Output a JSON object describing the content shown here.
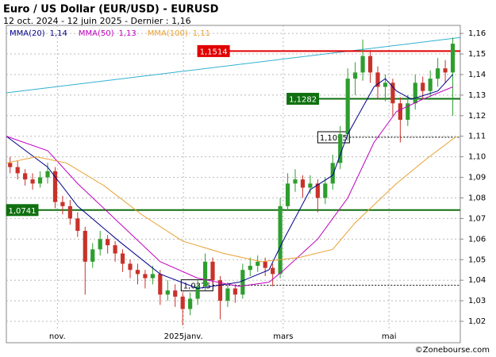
{
  "chart_data": {
    "type": "candlestick",
    "title": "Euro / US Dollar (EUR/USD) - EURUSD",
    "subtitle": "12 oct. 2024 - 12 juin 2025 - Dernier : 1,16",
    "source": "©Zonebourse.com",
    "up_color": "#2e9e2e",
    "down_color": "#c8322a",
    "grid": true,
    "xlim": [
      -0.5,
      60
    ],
    "ylim": [
      1.0096,
      1.1639
    ],
    "xticks": [
      {
        "value": 6.3,
        "label": "nov."
      },
      {
        "value": 23.1,
        "label": "2025janv."
      },
      {
        "value": 36.4,
        "label": "mars"
      },
      {
        "value": 50.5,
        "label": "mai"
      }
    ],
    "yticks": [
      {
        "value": 1.02,
        "label": "1,02"
      },
      {
        "value": 1.03,
        "label": "1,03"
      },
      {
        "value": 1.04,
        "label": "1,04"
      },
      {
        "value": 1.05,
        "label": "1,05"
      },
      {
        "value": 1.06,
        "label": "1,06"
      },
      {
        "value": 1.07,
        "label": "1,07"
      },
      {
        "value": 1.08,
        "label": "1,08"
      },
      {
        "value": 1.09,
        "label": "1,09"
      },
      {
        "value": 1.1,
        "label": "1,10"
      },
      {
        "value": 1.11,
        "label": "1,11"
      },
      {
        "value": 1.12,
        "label": "1,12"
      },
      {
        "value": 1.13,
        "label": "1,13"
      },
      {
        "value": 1.14,
        "label": "1,14"
      },
      {
        "value": 1.15,
        "label": "1,15"
      },
      {
        "value": 1.16,
        "label": "1,16"
      }
    ],
    "candles": [
      [
        1.097,
        1.1,
        1.092,
        1.095
      ],
      [
        1.095,
        1.098,
        1.089,
        1.092
      ],
      [
        1.092,
        1.094,
        1.086,
        1.089
      ],
      [
        1.089,
        1.092,
        1.084,
        1.087
      ],
      [
        1.087,
        1.093,
        1.085,
        1.09
      ],
      [
        1.09,
        1.097,
        1.087,
        1.093
      ],
      [
        1.093,
        1.095,
        1.075,
        1.078
      ],
      [
        1.078,
        1.081,
        1.072,
        1.076
      ],
      [
        1.076,
        1.079,
        1.067,
        1.07
      ],
      [
        1.07,
        1.073,
        1.061,
        1.064
      ],
      [
        1.064,
        1.066,
        1.033,
        1.049
      ],
      [
        1.049,
        1.058,
        1.046,
        1.055
      ],
      [
        1.055,
        1.064,
        1.052,
        1.06
      ],
      [
        1.06,
        1.062,
        1.053,
        1.057
      ],
      [
        1.057,
        1.059,
        1.049,
        1.053
      ],
      [
        1.053,
        1.055,
        1.044,
        1.048
      ],
      [
        1.048,
        1.05,
        1.041,
        1.045
      ],
      [
        1.045,
        1.048,
        1.038,
        1.043
      ],
      [
        1.043,
        1.045,
        1.036,
        1.041
      ],
      [
        1.041,
        1.047,
        1.038,
        1.043
      ],
      [
        1.043,
        1.045,
        1.028,
        1.033
      ],
      [
        1.033,
        1.04,
        1.03,
        1.035
      ],
      [
        1.035,
        1.038,
        1.027,
        1.032
      ],
      [
        1.032,
        1.034,
        1.018,
        1.026
      ],
      [
        1.026,
        1.034,
        1.023,
        1.031
      ],
      [
        1.031,
        1.04,
        1.028,
        1.037
      ],
      [
        1.037,
        1.053,
        1.035,
        1.049
      ],
      [
        1.049,
        1.051,
        1.038,
        1.04
      ],
      [
        1.04,
        1.042,
        1.021,
        1.03
      ],
      [
        1.03,
        1.039,
        1.027,
        1.036
      ],
      [
        1.036,
        1.038,
        1.029,
        1.033
      ],
      [
        1.033,
        1.048,
        1.031,
        1.045
      ],
      [
        1.045,
        1.051,
        1.042,
        1.047
      ],
      [
        1.047,
        1.052,
        1.044,
        1.049
      ],
      [
        1.049,
        1.051,
        1.042,
        1.046
      ],
      [
        1.046,
        1.048,
        1.037,
        1.043
      ],
      [
        1.043,
        1.08,
        1.041,
        1.076
      ],
      [
        1.076,
        1.092,
        1.074,
        1.087
      ],
      [
        1.087,
        1.094,
        1.083,
        1.089
      ],
      [
        1.089,
        1.091,
        1.08,
        1.085
      ],
      [
        1.085,
        1.091,
        1.082,
        1.087
      ],
      [
        1.087,
        1.089,
        1.073,
        1.08
      ],
      [
        1.08,
        1.09,
        1.077,
        1.087
      ],
      [
        1.087,
        1.101,
        1.084,
        1.097
      ],
      [
        1.097,
        1.115,
        1.094,
        1.111
      ],
      [
        1.111,
        1.143,
        1.108,
        1.138
      ],
      [
        1.138,
        1.146,
        1.13,
        1.141
      ],
      [
        1.141,
        1.157,
        1.137,
        1.149
      ],
      [
        1.149,
        1.152,
        1.136,
        1.141
      ],
      [
        1.141,
        1.144,
        1.128,
        1.134
      ],
      [
        1.134,
        1.14,
        1.127,
        1.136
      ],
      [
        1.136,
        1.138,
        1.12,
        1.126
      ],
      [
        1.126,
        1.129,
        1.107,
        1.118
      ],
      [
        1.118,
        1.13,
        1.115,
        1.126
      ],
      [
        1.126,
        1.14,
        1.123,
        1.136
      ],
      [
        1.136,
        1.139,
        1.128,
        1.132
      ],
      [
        1.132,
        1.142,
        1.129,
        1.138
      ],
      [
        1.138,
        1.148,
        1.134,
        1.143
      ],
      [
        1.143,
        1.147,
        1.136,
        1.141
      ],
      [
        1.141,
        1.158,
        1.12,
        1.155
      ]
    ],
    "series": [
      {
        "name": "MMA(20)",
        "last_label": "1,14",
        "last": 1.14,
        "color": "#00008b",
        "x": [
          -0.5,
          5,
          9,
          14.5,
          20,
          25,
          30.5,
          34.5,
          36.5,
          40,
          43,
          45,
          48.5,
          50,
          51.5,
          53.5,
          57,
          59
        ],
        "values": [
          1.11,
          1.095,
          1.076,
          1.059,
          1.043,
          1.036,
          1.039,
          1.045,
          1.06,
          1.084,
          1.091,
          1.111,
          1.134,
          1.138,
          1.132,
          1.128,
          1.132,
          1.14
        ]
      },
      {
        "name": "MMA(50)",
        "last_label": "1,13",
        "last": 1.13,
        "color": "#c000c0",
        "x": [
          -0.5,
          5,
          9,
          14.5,
          20,
          25,
          30.5,
          34.5,
          36.5,
          41,
          45,
          48.5,
          51.5,
          55,
          59
        ],
        "values": [
          1.11,
          1.103,
          1.087,
          1.068,
          1.049,
          1.041,
          1.037,
          1.039,
          1.045,
          1.06,
          1.08,
          1.107,
          1.122,
          1.128,
          1.134
        ]
      },
      {
        "name": "MMA(100)",
        "last_label": "1,11",
        "last": 1.11,
        "color": "#e8a030",
        "x": [
          -0.5,
          3.5,
          7.5,
          12.5,
          17.5,
          23,
          28.5,
          33.5,
          38.5,
          43,
          46,
          51.5,
          55.5,
          59.5
        ],
        "values": [
          1.097,
          1.1,
          1.097,
          1.086,
          1.072,
          1.059,
          1.053,
          1.049,
          1.051,
          1.055,
          1.068,
          1.087,
          1.099,
          1.11
        ]
      }
    ],
    "trendline": {
      "color": "#30b0d0",
      "x": [
        -0.5,
        60
      ],
      "values": [
        1.1311,
        1.158
      ]
    },
    "levels": [
      {
        "value": 1.1514,
        "label": "1,1514",
        "color": "#e00000",
        "style": "solid",
        "from": 25.0
      },
      {
        "value": 1.1282,
        "label": "1,1282",
        "color": "#107010",
        "style": "solid",
        "from": 36.9
      },
      {
        "value": 1.1095,
        "label": "1,1095",
        "color": "#000000",
        "style": "dotted",
        "from": 41.0
      },
      {
        "value": 1.0741,
        "label": "1,0741",
        "color": "#107010",
        "style": "solid",
        "from": -0.5
      },
      {
        "value": 1.0375,
        "label": "1,0375",
        "color": "#000000",
        "style": "dotted",
        "from": 22.8
      }
    ]
  }
}
